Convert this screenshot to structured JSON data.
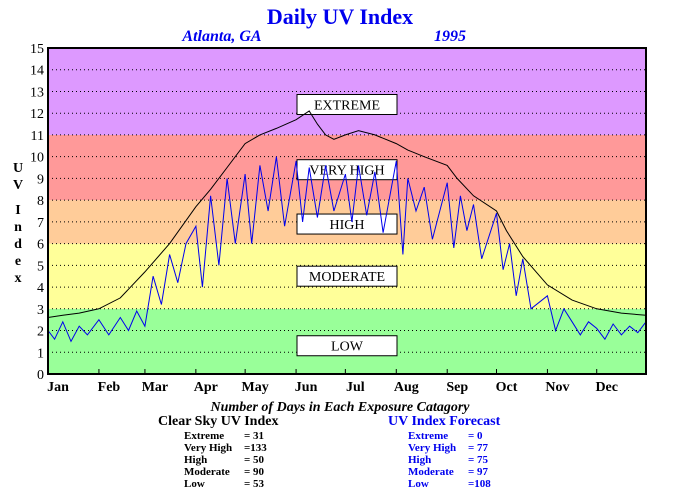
{
  "chart_data": {
    "type": "line",
    "title": "Daily UV Index",
    "location": "Atlanta, GA",
    "year": "1995",
    "ylabel": "UV Index",
    "ylim": [
      0,
      15
    ],
    "xlim": [
      1,
      365
    ],
    "yticks": [
      "0",
      "1",
      "2",
      "3",
      "4",
      "5",
      "6",
      "7",
      "8",
      "9",
      "10",
      "11",
      "12",
      "13",
      "14",
      "15"
    ],
    "months": [
      {
        "label": "Jan",
        "day": 1
      },
      {
        "label": "Feb",
        "day": 32
      },
      {
        "label": "Mar",
        "day": 60
      },
      {
        "label": "Apr",
        "day": 91
      },
      {
        "label": "May",
        "day": 121
      },
      {
        "label": "Jun",
        "day": 152
      },
      {
        "label": "Jul",
        "day": 182
      },
      {
        "label": "Aug",
        "day": 213
      },
      {
        "label": "Sep",
        "day": 244
      },
      {
        "label": "Oct",
        "day": 274
      },
      {
        "label": "Nov",
        "day": 305
      },
      {
        "label": "Dec",
        "day": 335
      }
    ],
    "grid": true,
    "bands": [
      {
        "label": "LOW",
        "from": 0,
        "to": 3,
        "color": "#99ff99",
        "label_y": 1.3
      },
      {
        "label": "MODERATE",
        "from": 3,
        "to": 6,
        "color": "#ffff99",
        "label_y": 4.5
      },
      {
        "label": "HIGH",
        "from": 6,
        "to": 8,
        "color": "#ffcc99",
        "label_y": 6.9
      },
      {
        "label": "VERY HIGH",
        "from": 8,
        "to": 11,
        "color": "#ff9999",
        "label_y": 9.4
      },
      {
        "label": "EXTREME",
        "from": 11,
        "to": 15,
        "color": "#dd99ff",
        "label_y": 12.4
      }
    ],
    "series": [
      {
        "name": "Clear Sky UV Index",
        "color": "#000000",
        "x": [
          1,
          10,
          20,
          32,
          45,
          60,
          75,
          91,
          100,
          110,
          121,
          130,
          140,
          152,
          160,
          165,
          170,
          175,
          182,
          190,
          200,
          213,
          220,
          230,
          244,
          250,
          260,
          274,
          280,
          290,
          305,
          320,
          335,
          350,
          365
        ],
        "y": [
          2.6,
          2.7,
          2.8,
          3.0,
          3.5,
          4.7,
          6.0,
          7.7,
          8.5,
          9.5,
          10.6,
          11.0,
          11.3,
          11.7,
          12.1,
          11.5,
          11.0,
          10.8,
          11.0,
          11.2,
          11.0,
          10.6,
          10.3,
          10.0,
          9.6,
          9.0,
          8.2,
          7.5,
          6.6,
          5.4,
          4.1,
          3.4,
          3.0,
          2.8,
          2.7
        ]
      },
      {
        "name": "UV Index Forecast",
        "color": "#0000ee",
        "x": [
          1,
          5,
          10,
          15,
          20,
          25,
          32,
          38,
          45,
          50,
          55,
          60,
          65,
          70,
          75,
          80,
          85,
          91,
          95,
          100,
          105,
          110,
          115,
          121,
          125,
          130,
          135,
          140,
          145,
          152,
          156,
          160,
          165,
          170,
          175,
          182,
          186,
          190,
          195,
          200,
          205,
          213,
          217,
          220,
          225,
          230,
          235,
          244,
          248,
          252,
          256,
          260,
          265,
          274,
          278,
          282,
          286,
          290,
          295,
          305,
          310,
          315,
          320,
          325,
          330,
          335,
          340,
          345,
          350,
          355,
          360,
          365
        ],
        "y": [
          2.0,
          1.6,
          2.4,
          1.5,
          2.2,
          1.8,
          2.5,
          1.8,
          2.6,
          2.0,
          2.9,
          2.2,
          4.5,
          3.2,
          5.5,
          4.2,
          6.0,
          6.8,
          4.0,
          8.2,
          5.0,
          9.0,
          6.0,
          9.2,
          6.0,
          9.6,
          7.5,
          10.0,
          6.8,
          9.8,
          7.0,
          9.5,
          7.2,
          9.6,
          7.5,
          9.2,
          7.0,
          9.6,
          7.3,
          9.3,
          6.5,
          9.8,
          5.5,
          9.0,
          7.5,
          8.6,
          6.2,
          8.8,
          5.8,
          8.2,
          6.6,
          7.8,
          5.3,
          7.4,
          4.8,
          6.0,
          3.6,
          5.3,
          3.0,
          3.6,
          2.0,
          3.0,
          2.4,
          1.8,
          2.4,
          2.1,
          1.6,
          2.3,
          1.8,
          2.2,
          1.9,
          2.4
        ]
      }
    ]
  },
  "footnote": "Number of Days in Each Exposure Catagory",
  "summaries": [
    {
      "title": "Clear Sky UV Index",
      "color": "#000000",
      "rows": [
        {
          "label": "Extreme",
          "value": "= 31"
        },
        {
          "label": "Very High",
          "value": "=133"
        },
        {
          "label": "High",
          "value": "= 50"
        },
        {
          "label": "Moderate",
          "value": "= 90"
        },
        {
          "label": "Low",
          "value": "= 53"
        }
      ]
    },
    {
      "title": "UV Index Forecast",
      "color": "#0000ee",
      "rows": [
        {
          "label": "Extreme",
          "value": "= 0"
        },
        {
          "label": "Very High",
          "value": "= 77"
        },
        {
          "label": "High",
          "value": "= 75"
        },
        {
          "label": "Moderate",
          "value": "= 97"
        },
        {
          "label": "Low",
          "value": "=108"
        }
      ]
    }
  ]
}
